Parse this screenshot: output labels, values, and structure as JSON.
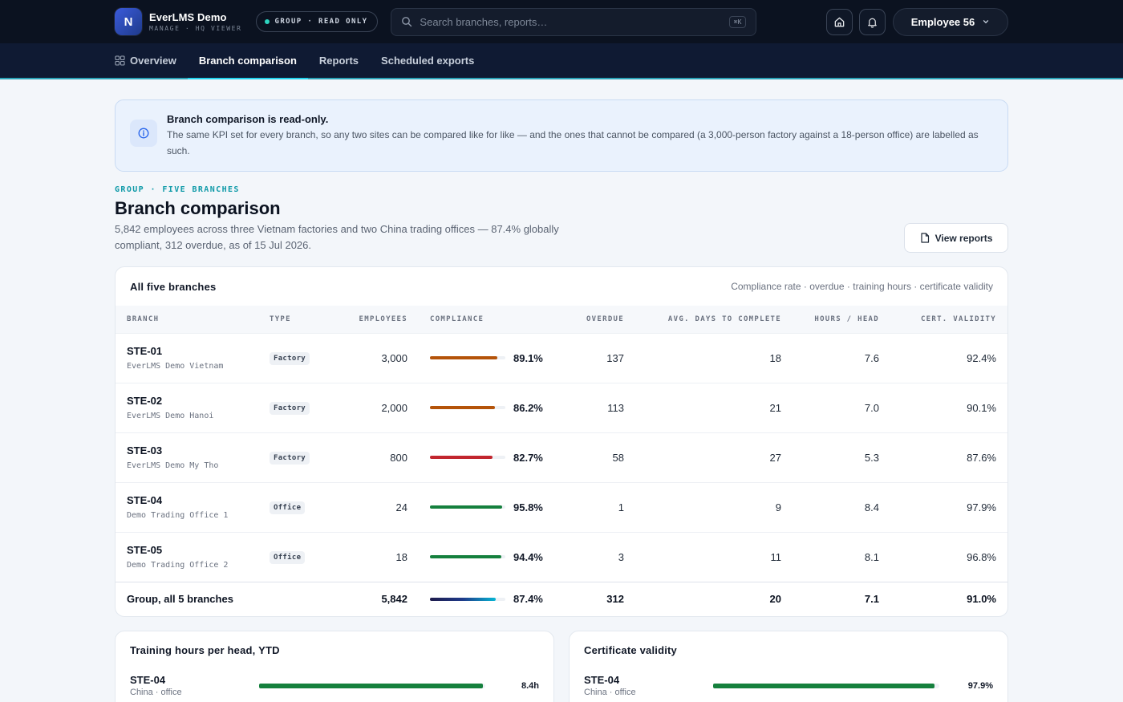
{
  "app": {
    "logo_letter": "N",
    "title": "EverLMS Demo",
    "subtitle": "MANAGE · HQ VIEWER",
    "mode_label": "GROUP · READ ONLY",
    "search_placeholder": "Search branches, reports…",
    "search_shortcut": "⌘K",
    "user_name": "Employee 56"
  },
  "nav": {
    "items": [
      {
        "label": "Overview"
      },
      {
        "label": "Branch comparison"
      },
      {
        "label": "Reports"
      },
      {
        "label": "Scheduled exports"
      }
    ]
  },
  "notice": {
    "title": "Branch comparison is read-only.",
    "body": "The same KPI set for every branch, so any two sites can be compared like for like — and the ones that cannot be compared (a 3,000-person factory against a 18-person office) are labelled as such."
  },
  "header": {
    "eyebrow": "GROUP · FIVE BRANCHES",
    "title": "Branch comparison",
    "description": "5,842 employees across three Vietnam factories and two China trading offices — 87.4% globally compliant, 312 overdue, as of 15 Jul 2026.",
    "view_reports_label": "View reports"
  },
  "table": {
    "title": "All five branches",
    "meta": "Compliance rate · overdue · training hours · certificate validity",
    "columns": {
      "branch": "BRANCH",
      "type": "TYPE",
      "employees": "EMPLOYEES",
      "compliance": "COMPLIANCE",
      "overdue": "OVERDUE",
      "avg_days": "AVG. DAYS TO COMPLETE",
      "hours": "HOURS / HEAD",
      "cert": "CERT. VALIDITY"
    },
    "rows": [
      {
        "code": "STE-01",
        "site": "EverLMS Demo Vietnam",
        "type": "Factory",
        "employees": "3,000",
        "compliance": "89.1%",
        "compliance_value": 89.1,
        "bar_color": "#b45309",
        "overdue": "137",
        "avg_days": "18",
        "hours": "7.6",
        "cert": "92.4%"
      },
      {
        "code": "STE-02",
        "site": "EverLMS Demo Hanoi",
        "type": "Factory",
        "employees": "2,000",
        "compliance": "86.2%",
        "compliance_value": 86.2,
        "bar_color": "#b45309",
        "overdue": "113",
        "avg_days": "21",
        "hours": "7.0",
        "cert": "90.1%"
      },
      {
        "code": "STE-03",
        "site": "EverLMS Demo My Tho",
        "type": "Factory",
        "employees": "800",
        "compliance": "82.7%",
        "compliance_value": 82.7,
        "bar_color": "#c2262e",
        "overdue": "58",
        "avg_days": "27",
        "hours": "5.3",
        "cert": "87.6%"
      },
      {
        "code": "STE-04",
        "site": "Demo Trading Office 1",
        "type": "Office",
        "employees": "24",
        "compliance": "95.8%",
        "compliance_value": 95.8,
        "bar_color": "#15803d",
        "overdue": "1",
        "avg_days": "9",
        "hours": "8.4",
        "cert": "97.9%"
      },
      {
        "code": "STE-05",
        "site": "Demo Trading Office 2",
        "type": "Office",
        "employees": "18",
        "compliance": "94.4%",
        "compliance_value": 94.4,
        "bar_color": "#15803d",
        "overdue": "3",
        "avg_days": "11",
        "hours": "8.1",
        "cert": "96.8%"
      }
    ],
    "total": {
      "label": "Group, all 5 branches",
      "employees": "5,842",
      "compliance": "87.4%",
      "compliance_value": 87.4,
      "overdue": "312",
      "avg_days": "20",
      "hours": "7.1",
      "cert": "91.0%"
    }
  },
  "training_hours": {
    "title": "Training hours per head, YTD",
    "rows": [
      {
        "code": "STE-04",
        "sub": "China · office",
        "value": "8.4h",
        "fraction": 0.99,
        "color": "#15803d"
      }
    ]
  },
  "cert_validity": {
    "title": "Certificate validity",
    "rows": [
      {
        "code": "STE-04",
        "sub": "China · office",
        "value": "97.9%",
        "fraction": 0.979,
        "color": "#15803d"
      }
    ]
  }
}
